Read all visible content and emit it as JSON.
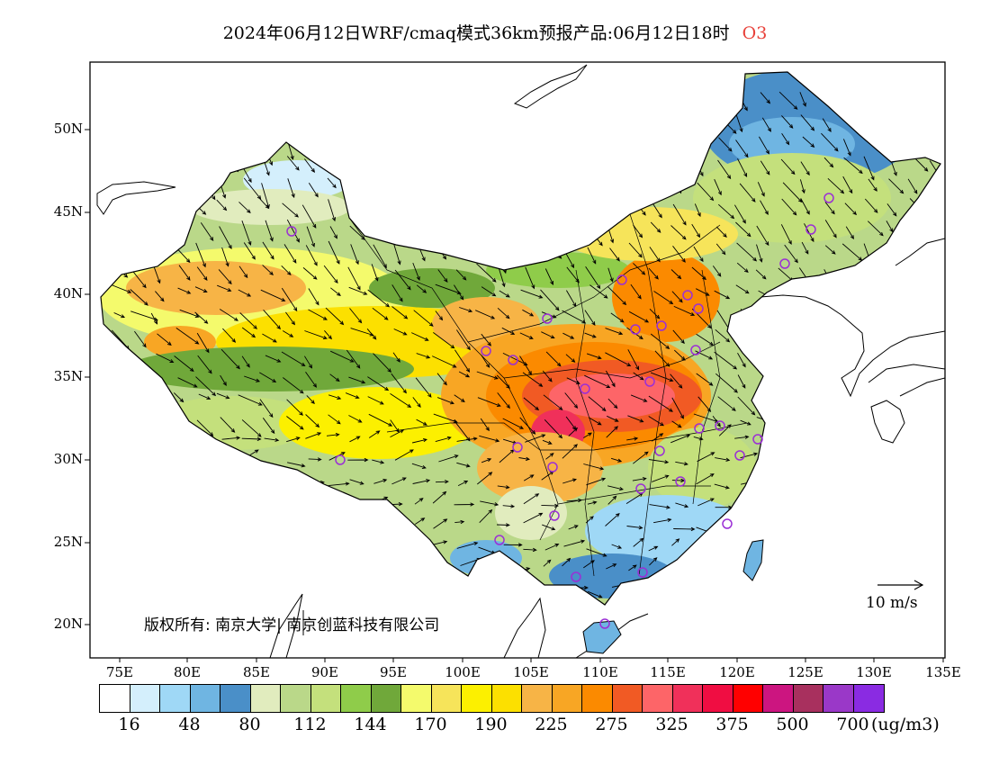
{
  "title": {
    "main": "2024年06月12日WRF/cmaq模式36km预报产品:06月12日18时",
    "pollutant": "O3",
    "pollutant_color": "#e8413a"
  },
  "copyright": "版权所有: 南京大学| 南京创蓝科技有限公司",
  "scale_label": "10 m/s",
  "lon_labels": [
    "75E",
    "80E",
    "85E",
    "90E",
    "95E",
    "100E",
    "105E",
    "110E",
    "115E",
    "120E",
    "125E",
    "130E",
    "135E"
  ],
  "lat_labels": [
    "50N",
    "45N",
    "40N",
    "35N",
    "30N",
    "25N",
    "20N"
  ],
  "colorbar": {
    "colors": [
      "#ffffff",
      "#d4effc",
      "#9fd8f6",
      "#6fb5e2",
      "#4a8fc8",
      "#e1ecbe",
      "#bad889",
      "#c4e07c",
      "#8fcc4a",
      "#70a83a",
      "#f4fa6c",
      "#f6e45a",
      "#fcf000",
      "#fce000",
      "#f7b446",
      "#f8a624",
      "#fb8a00",
      "#f15a24",
      "#fd6568",
      "#f0305a",
      "#f00d42",
      "#ff0000",
      "#cc1580",
      "#a8305e",
      "#9a38c8",
      "#8a2be2"
    ],
    "labels": [
      "16",
      "48",
      "80",
      "112",
      "144",
      "170",
      "190",
      "225",
      "275",
      "325",
      "375",
      "500",
      "700"
    ],
    "unit": "(ug/m3)"
  },
  "station_color": "#9b2fd6"
}
